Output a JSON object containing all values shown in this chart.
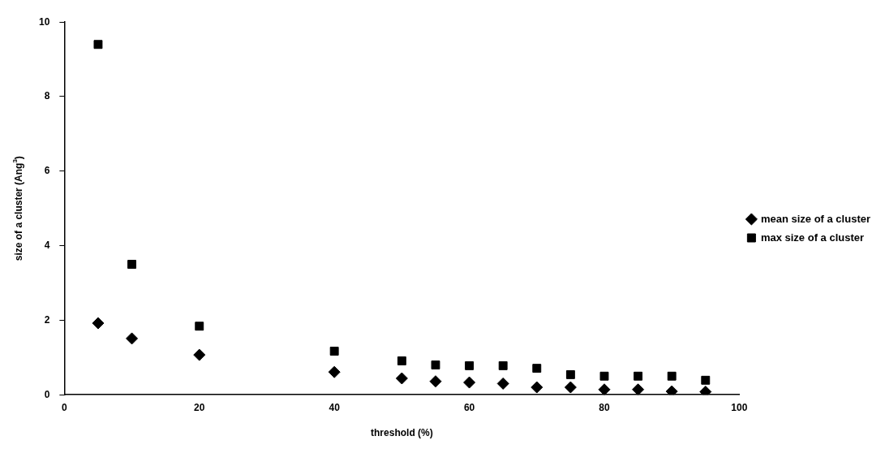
{
  "chart_data": {
    "type": "scatter",
    "xlabel": "threshold (%)",
    "ylabel": "size of a cluster (Ang$^{3}$)",
    "x": [
      5,
      10,
      20,
      40,
      50,
      55,
      60,
      65,
      70,
      75,
      80,
      85,
      90,
      95
    ],
    "series": [
      {
        "name": "mean size of a cluster",
        "color": "#000000",
        "marker": "diamond",
        "values": [
          1.92,
          1.51,
          1.07,
          0.61,
          0.44,
          0.36,
          0.33,
          0.3,
          0.2,
          0.2,
          0.14,
          0.14,
          0.09,
          0.08
        ]
      },
      {
        "name": "max size of a cluster",
        "color": "#000000",
        "marker": "square",
        "values": [
          9.4,
          3.5,
          1.84,
          1.17,
          0.91,
          0.8,
          0.78,
          0.78,
          0.71,
          0.54,
          0.5,
          0.5,
          0.5,
          0.39
        ]
      }
    ],
    "xlim": [
      0,
      100
    ],
    "xticks": [
      0,
      20,
      40,
      60,
      80,
      100
    ],
    "ylim": [
      0,
      10
    ],
    "yticks": [
      0,
      2,
      4,
      6,
      8,
      10
    ],
    "grid": false,
    "legend": "right"
  }
}
